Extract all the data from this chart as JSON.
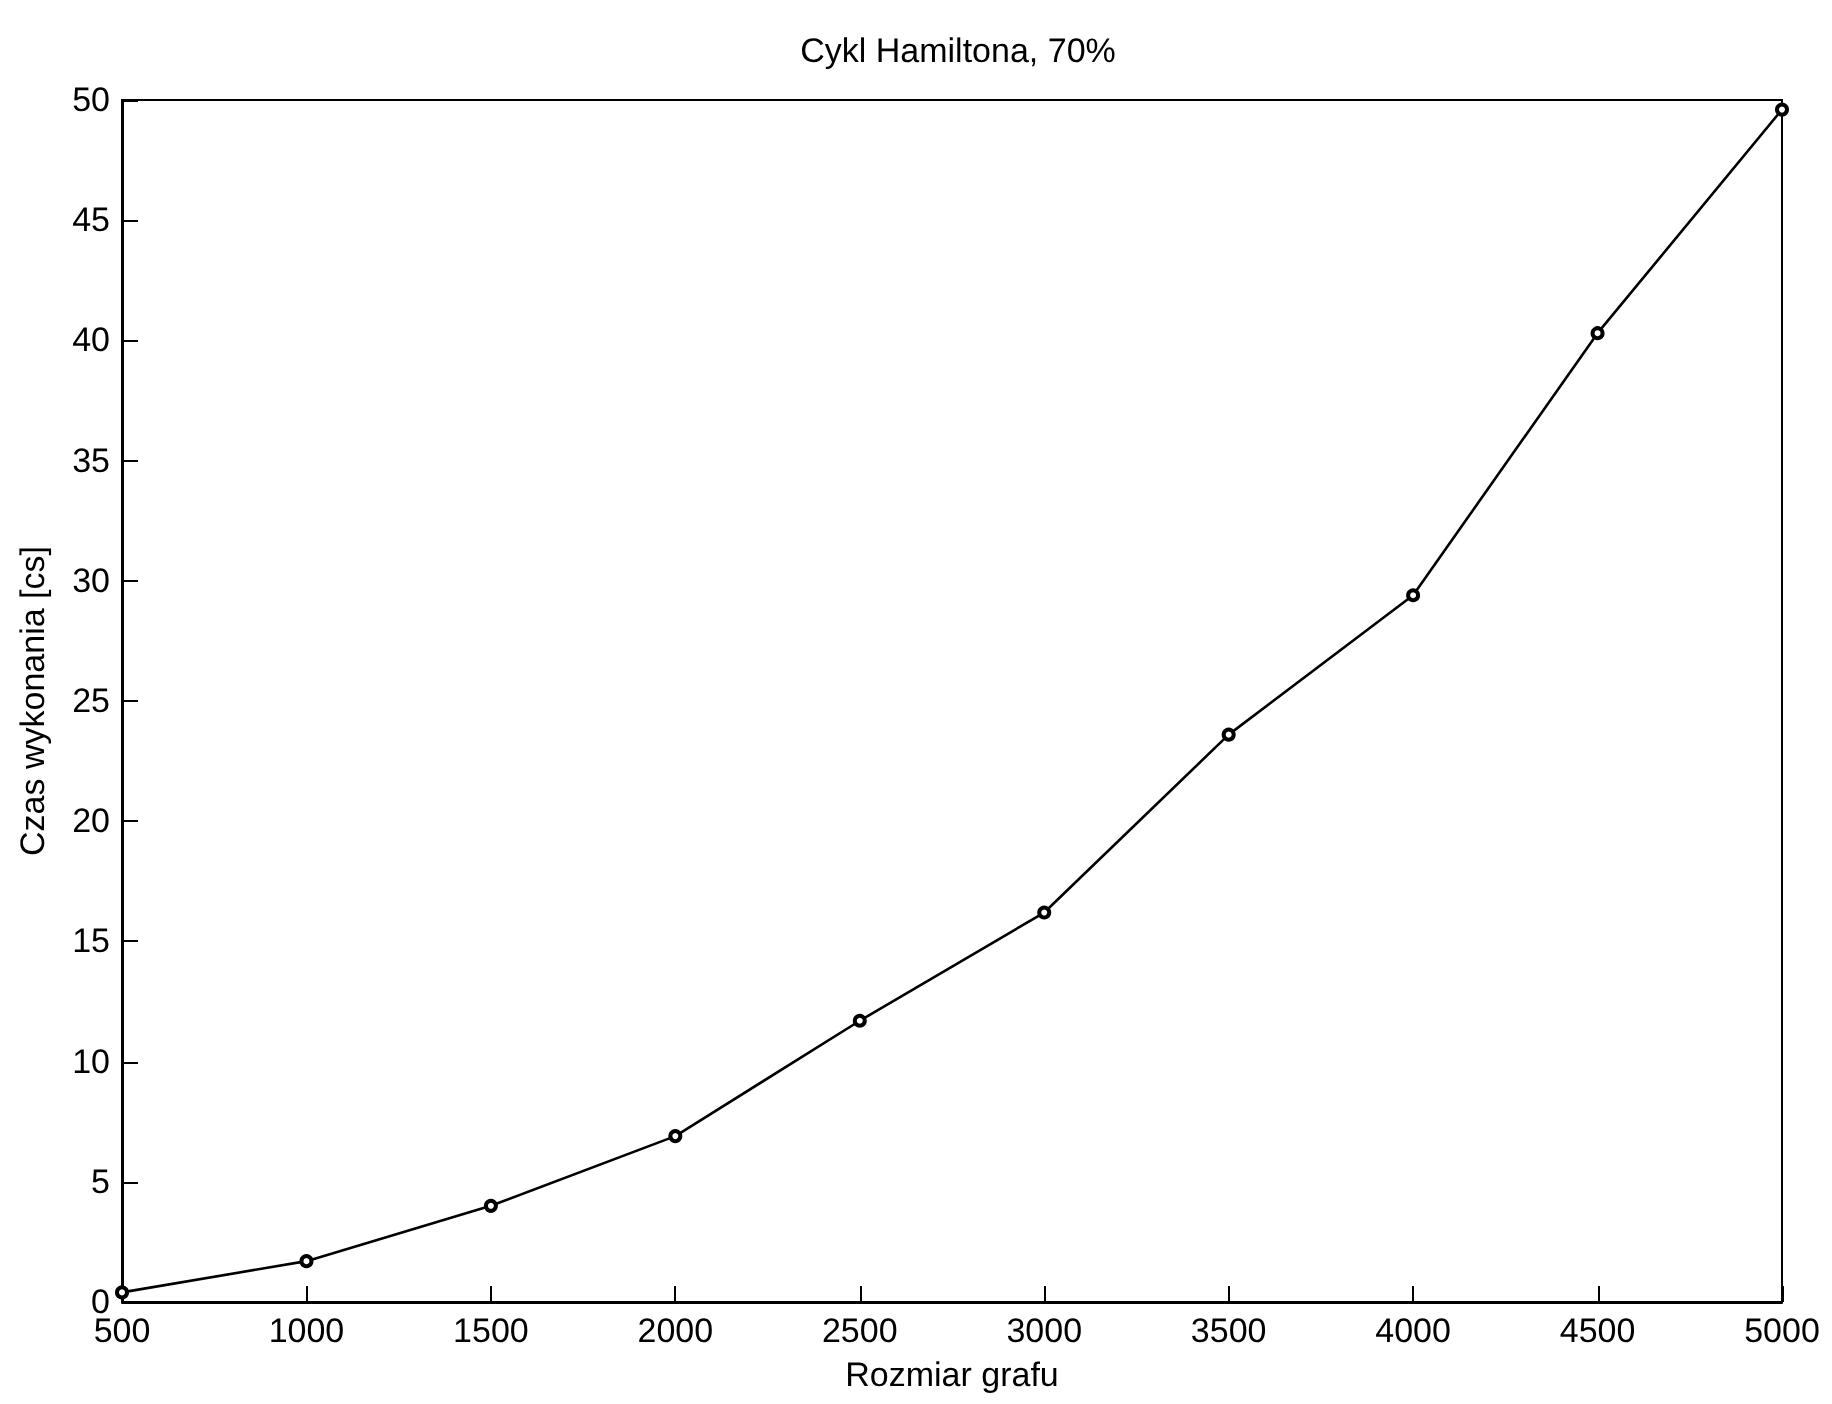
{
  "chart_data": {
    "type": "line",
    "title": "Cykl Hamiltona, 70%",
    "xlabel": "Rozmiar grafu",
    "ylabel": "Czas wykonania [cs]",
    "x": [
      500,
      1000,
      1500,
      2000,
      2500,
      3000,
      3500,
      4000,
      4500,
      5000
    ],
    "series": [
      {
        "color": "#000000",
        "values": [
          0.4,
          1.7,
          4.0,
          6.9,
          11.7,
          16.2,
          23.6,
          29.4,
          40.3,
          49.6
        ]
      }
    ],
    "xlim": [
      500,
      5000
    ],
    "xticks": [
      500,
      1000,
      1500,
      2000,
      2500,
      3000,
      3500,
      4000,
      4500,
      5000
    ],
    "ylim": [
      0,
      50
    ],
    "yticks": [
      0,
      5,
      10,
      15,
      20,
      25,
      30,
      35,
      40,
      45,
      50
    ],
    "grid": false,
    "marker": "circle",
    "line_style": "solid"
  }
}
